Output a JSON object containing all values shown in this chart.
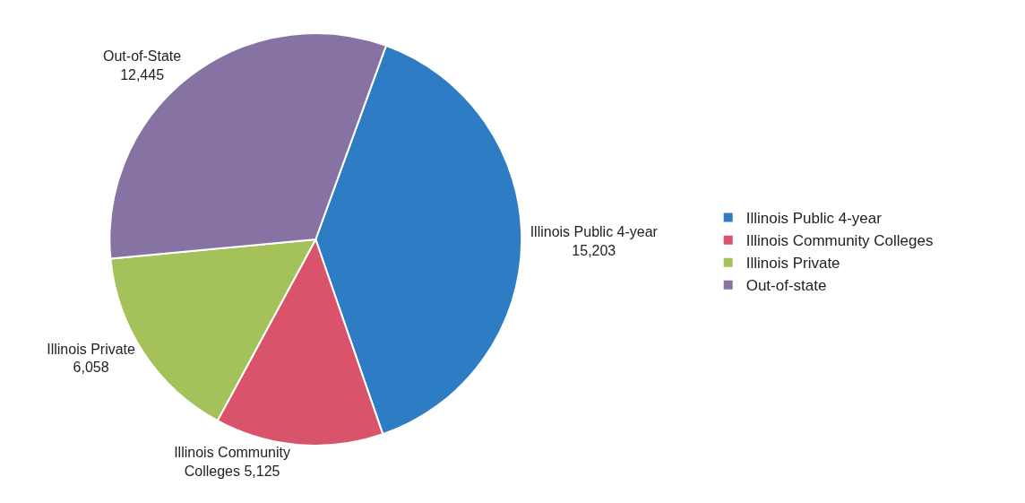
{
  "chart_data": {
    "type": "pie",
    "categories": [
      "Illinois Public 4-year",
      "Illinois Community Colleges",
      "Illinois Private",
      "Out-of-state"
    ],
    "values": [
      15203,
      5125,
      6058,
      12445
    ],
    "colors": [
      "#2e7dc4",
      "#d9536a",
      "#a5c25a",
      "#8673a3"
    ],
    "value_labels": [
      "Illinois Public 4-year\n15,203",
      "Illinois Community\nColleges 5,125",
      "Illinois Private\n6,058",
      "Out-of-State\n12,445"
    ],
    "legend": "right"
  }
}
